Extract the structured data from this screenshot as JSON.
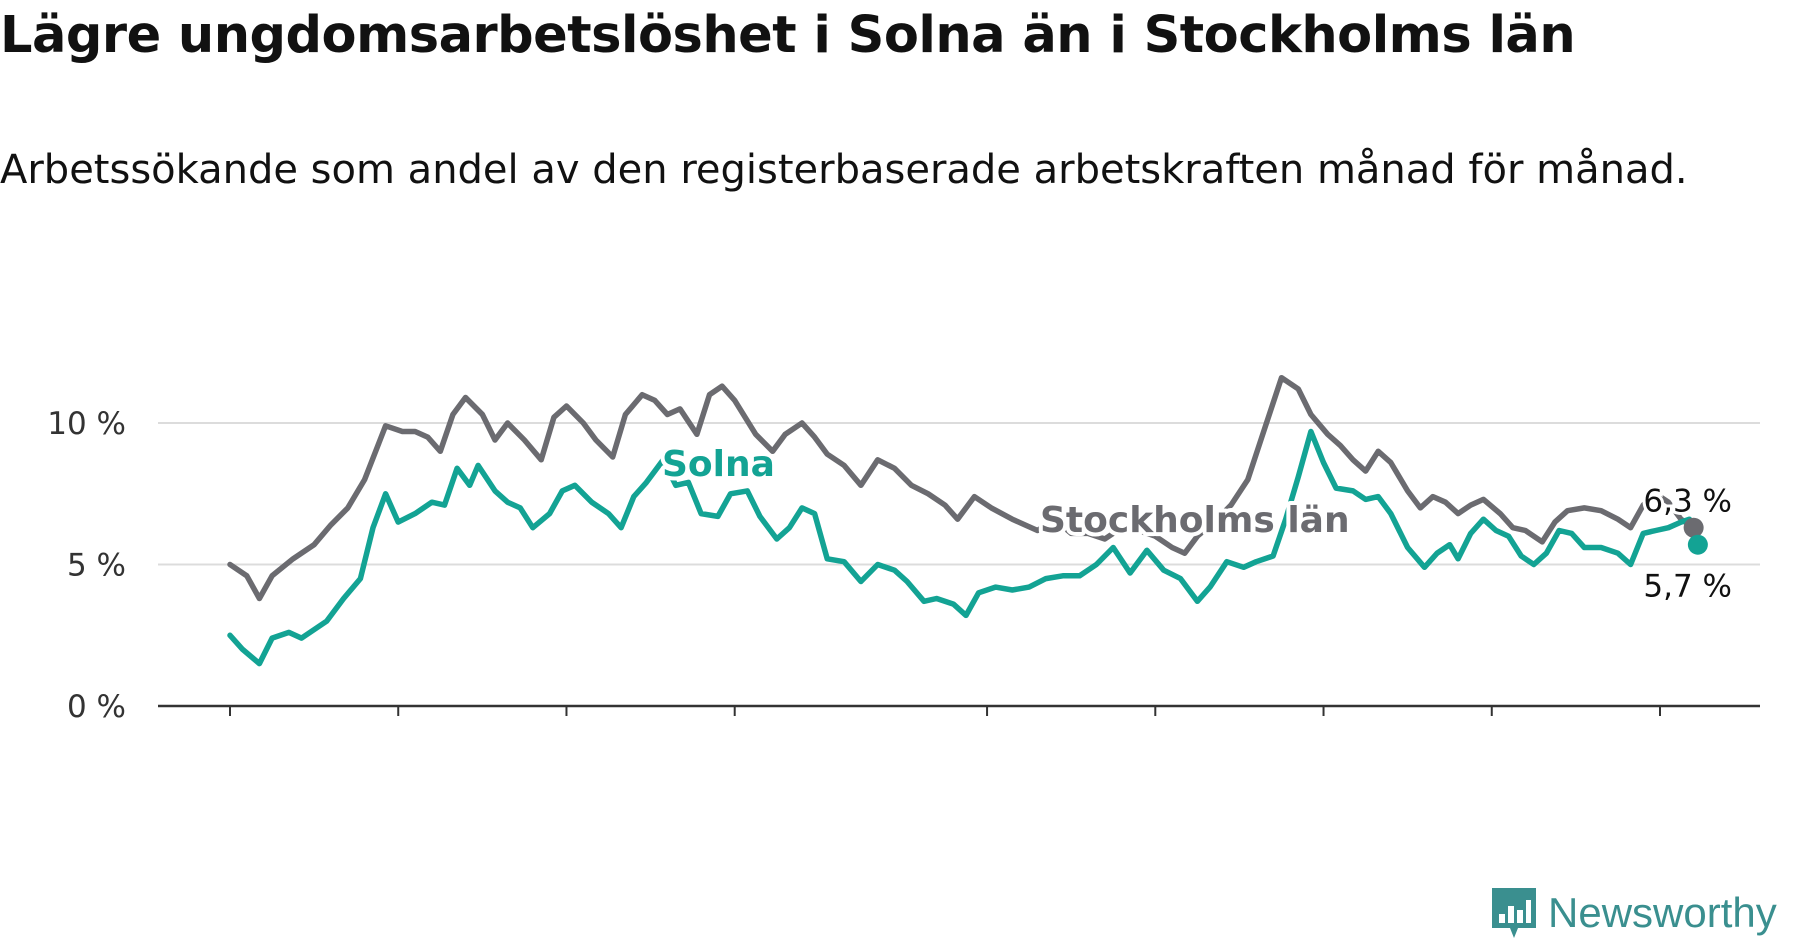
{
  "title": "Lägre ungdomsarbetslöshet i Solna än i Stockholms län",
  "subtitle": "Arbetssökande som andel av den registerbaserade arbetskraften månad för månad.",
  "brand": {
    "name": "Newsworthy",
    "color": "#3a8f8f",
    "icon": "newsworthy-logo-icon"
  },
  "chart_data": {
    "type": "line",
    "ylim": [
      0,
      10
    ],
    "yticks": [
      0,
      5,
      10
    ],
    "ytick_labels": [
      "0 %",
      "5 %",
      "10 %"
    ],
    "xlim": [
      2007.6,
      2026.4
    ],
    "xticks": [
      2008,
      2010,
      2012,
      2014,
      2017,
      2019,
      2021,
      2023,
      2025
    ],
    "grid": true,
    "series": [
      {
        "name": "Stockholms län",
        "color": "#6b6b70",
        "end_label": "6,3 %",
        "points": [
          [
            2008.0,
            5.0
          ],
          [
            2008.2,
            4.6
          ],
          [
            2008.35,
            3.8
          ],
          [
            2008.5,
            4.6
          ],
          [
            2008.75,
            5.2
          ],
          [
            2009.0,
            5.7
          ],
          [
            2009.2,
            6.4
          ],
          [
            2009.4,
            7.0
          ],
          [
            2009.6,
            8.0
          ],
          [
            2009.85,
            9.9
          ],
          [
            2010.05,
            9.7
          ],
          [
            2010.2,
            9.7
          ],
          [
            2010.35,
            9.5
          ],
          [
            2010.5,
            9.0
          ],
          [
            2010.65,
            10.3
          ],
          [
            2010.8,
            10.9
          ],
          [
            2011.0,
            10.3
          ],
          [
            2011.15,
            9.4
          ],
          [
            2011.3,
            10.0
          ],
          [
            2011.5,
            9.4
          ],
          [
            2011.7,
            8.7
          ],
          [
            2011.85,
            10.2
          ],
          [
            2012.0,
            10.6
          ],
          [
            2012.2,
            10.0
          ],
          [
            2012.35,
            9.4
          ],
          [
            2012.55,
            8.8
          ],
          [
            2012.7,
            10.3
          ],
          [
            2012.9,
            11.0
          ],
          [
            2013.05,
            10.8
          ],
          [
            2013.2,
            10.3
          ],
          [
            2013.35,
            10.5
          ],
          [
            2013.55,
            9.6
          ],
          [
            2013.7,
            11.0
          ],
          [
            2013.85,
            11.3
          ],
          [
            2014.0,
            10.8
          ],
          [
            2014.25,
            9.6
          ],
          [
            2014.45,
            9.0
          ],
          [
            2014.6,
            9.6
          ],
          [
            2014.8,
            10.0
          ],
          [
            2014.95,
            9.5
          ],
          [
            2015.1,
            8.9
          ],
          [
            2015.3,
            8.5
          ],
          [
            2015.5,
            7.8
          ],
          [
            2015.7,
            8.7
          ],
          [
            2015.9,
            8.4
          ],
          [
            2016.1,
            7.8
          ],
          [
            2016.3,
            7.5
          ],
          [
            2016.5,
            7.1
          ],
          [
            2016.65,
            6.6
          ],
          [
            2016.85,
            7.4
          ],
          [
            2017.05,
            7.0
          ],
          [
            2017.3,
            6.6
          ],
          [
            2017.45,
            6.4
          ],
          [
            2017.6,
            6.2
          ],
          [
            2017.8,
            6.6
          ],
          [
            2018.0,
            6.1
          ],
          [
            2018.2,
            6.1
          ],
          [
            2018.4,
            5.9
          ],
          [
            2018.6,
            6.3
          ],
          [
            2018.8,
            6.2
          ],
          [
            2019.0,
            6.0
          ],
          [
            2019.2,
            5.6
          ],
          [
            2019.35,
            5.4
          ],
          [
            2019.5,
            6.0
          ],
          [
            2019.7,
            6.5
          ],
          [
            2019.9,
            7.1
          ],
          [
            2020.1,
            8.0
          ],
          [
            2020.3,
            9.8
          ],
          [
            2020.5,
            11.6
          ],
          [
            2020.7,
            11.2
          ],
          [
            2020.85,
            10.3
          ],
          [
            2021.05,
            9.6
          ],
          [
            2021.2,
            9.2
          ],
          [
            2021.35,
            8.7
          ],
          [
            2021.5,
            8.3
          ],
          [
            2021.65,
            9.0
          ],
          [
            2021.8,
            8.6
          ],
          [
            2022.0,
            7.6
          ],
          [
            2022.15,
            7.0
          ],
          [
            2022.3,
            7.4
          ],
          [
            2022.45,
            7.2
          ],
          [
            2022.6,
            6.8
          ],
          [
            2022.75,
            7.1
          ],
          [
            2022.9,
            7.3
          ],
          [
            2023.1,
            6.8
          ],
          [
            2023.25,
            6.3
          ],
          [
            2023.4,
            6.2
          ],
          [
            2023.6,
            5.8
          ],
          [
            2023.75,
            6.5
          ],
          [
            2023.9,
            6.9
          ],
          [
            2024.1,
            7.0
          ],
          [
            2024.3,
            6.9
          ],
          [
            2024.5,
            6.6
          ],
          [
            2024.65,
            6.3
          ],
          [
            2024.8,
            7.1
          ],
          [
            2024.95,
            7.5
          ],
          [
            2025.1,
            7.2
          ],
          [
            2025.25,
            6.6
          ],
          [
            2025.4,
            6.3
          ]
        ]
      },
      {
        "name": "Solna",
        "color": "#13a394",
        "end_label": "5,7 %",
        "points": [
          [
            2008.0,
            2.5
          ],
          [
            2008.15,
            2.0
          ],
          [
            2008.35,
            1.5
          ],
          [
            2008.5,
            2.4
          ],
          [
            2008.7,
            2.6
          ],
          [
            2008.85,
            2.4
          ],
          [
            2009.0,
            2.7
          ],
          [
            2009.15,
            3.0
          ],
          [
            2009.35,
            3.8
          ],
          [
            2009.55,
            4.5
          ],
          [
            2009.7,
            6.3
          ],
          [
            2009.85,
            7.5
          ],
          [
            2010.0,
            6.5
          ],
          [
            2010.2,
            6.8
          ],
          [
            2010.4,
            7.2
          ],
          [
            2010.55,
            7.1
          ],
          [
            2010.7,
            8.4
          ],
          [
            2010.85,
            7.8
          ],
          [
            2010.95,
            8.5
          ],
          [
            2011.15,
            7.6
          ],
          [
            2011.3,
            7.2
          ],
          [
            2011.45,
            7.0
          ],
          [
            2011.6,
            6.3
          ],
          [
            2011.8,
            6.8
          ],
          [
            2011.95,
            7.6
          ],
          [
            2012.1,
            7.8
          ],
          [
            2012.3,
            7.2
          ],
          [
            2012.5,
            6.8
          ],
          [
            2012.65,
            6.3
          ],
          [
            2012.8,
            7.4
          ],
          [
            2012.95,
            7.9
          ],
          [
            2013.15,
            8.7
          ],
          [
            2013.3,
            7.8
          ],
          [
            2013.45,
            7.9
          ],
          [
            2013.6,
            6.8
          ],
          [
            2013.8,
            6.7
          ],
          [
            2013.95,
            7.5
          ],
          [
            2014.15,
            7.6
          ],
          [
            2014.3,
            6.7
          ],
          [
            2014.5,
            5.9
          ],
          [
            2014.65,
            6.3
          ],
          [
            2014.8,
            7.0
          ],
          [
            2014.95,
            6.8
          ],
          [
            2015.1,
            5.2
          ],
          [
            2015.3,
            5.1
          ],
          [
            2015.5,
            4.4
          ],
          [
            2015.7,
            5.0
          ],
          [
            2015.9,
            4.8
          ],
          [
            2016.05,
            4.4
          ],
          [
            2016.25,
            3.7
          ],
          [
            2016.4,
            3.8
          ],
          [
            2016.6,
            3.6
          ],
          [
            2016.75,
            3.2
          ],
          [
            2016.9,
            4.0
          ],
          [
            2017.1,
            4.2
          ],
          [
            2017.3,
            4.1
          ],
          [
            2017.5,
            4.2
          ],
          [
            2017.7,
            4.5
          ],
          [
            2017.9,
            4.6
          ],
          [
            2018.1,
            4.6
          ],
          [
            2018.3,
            5.0
          ],
          [
            2018.5,
            5.6
          ],
          [
            2018.7,
            4.7
          ],
          [
            2018.9,
            5.5
          ],
          [
            2019.1,
            4.8
          ],
          [
            2019.3,
            4.5
          ],
          [
            2019.5,
            3.7
          ],
          [
            2019.65,
            4.2
          ],
          [
            2019.85,
            5.1
          ],
          [
            2020.05,
            4.9
          ],
          [
            2020.2,
            5.1
          ],
          [
            2020.4,
            5.3
          ],
          [
            2020.55,
            6.6
          ],
          [
            2020.7,
            8.1
          ],
          [
            2020.85,
            9.7
          ],
          [
            2021.0,
            8.6
          ],
          [
            2021.15,
            7.7
          ],
          [
            2021.35,
            7.6
          ],
          [
            2021.5,
            7.3
          ],
          [
            2021.65,
            7.4
          ],
          [
            2021.8,
            6.8
          ],
          [
            2022.0,
            5.6
          ],
          [
            2022.2,
            4.9
          ],
          [
            2022.35,
            5.4
          ],
          [
            2022.5,
            5.7
          ],
          [
            2022.6,
            5.2
          ],
          [
            2022.75,
            6.1
          ],
          [
            2022.9,
            6.6
          ],
          [
            2023.05,
            6.2
          ],
          [
            2023.2,
            6.0
          ],
          [
            2023.35,
            5.3
          ],
          [
            2023.5,
            5.0
          ],
          [
            2023.65,
            5.4
          ],
          [
            2023.8,
            6.2
          ],
          [
            2023.95,
            6.1
          ],
          [
            2024.1,
            5.6
          ],
          [
            2024.3,
            5.6
          ],
          [
            2024.5,
            5.4
          ],
          [
            2024.65,
            5.0
          ],
          [
            2024.8,
            6.1
          ],
          [
            2024.95,
            6.2
          ],
          [
            2025.1,
            6.3
          ],
          [
            2025.25,
            6.5
          ],
          [
            2025.35,
            6.6
          ],
          [
            2025.45,
            5.7
          ]
        ]
      }
    ]
  }
}
